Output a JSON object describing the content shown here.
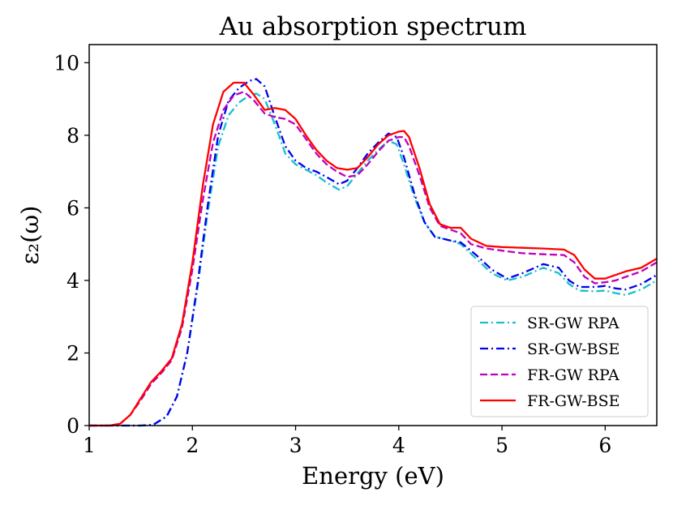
{
  "chart_data": {
    "type": "line",
    "title": "Au absorption spectrum",
    "xlabel": "Energy (eV)",
    "ylabel": "ε₂(ω)",
    "xlim": [
      1,
      6.5
    ],
    "ylim": [
      0,
      10.5
    ],
    "xticks": [
      1,
      2,
      3,
      4,
      5,
      6
    ],
    "yticks": [
      0,
      2,
      4,
      6,
      8,
      10
    ],
    "legend_position": "lower-right",
    "series": [
      {
        "name": "SR-GW RPA",
        "color": "#17becf",
        "dash": "dashdot",
        "x": [
          1.0,
          1.5,
          1.62,
          1.75,
          1.85,
          1.95,
          2.05,
          2.15,
          2.25,
          2.35,
          2.45,
          2.55,
          2.62,
          2.7,
          2.8,
          2.9,
          3.0,
          3.1,
          3.2,
          3.3,
          3.42,
          3.5,
          3.6,
          3.7,
          3.8,
          3.9,
          3.98,
          4.05,
          4.15,
          4.25,
          4.35,
          4.5,
          4.6,
          4.75,
          4.9,
          5.05,
          5.2,
          5.4,
          5.55,
          5.65,
          5.75,
          5.9,
          6.0,
          6.1,
          6.2,
          6.35,
          6.5
        ],
        "y": [
          0.0,
          0.0,
          0.02,
          0.25,
          0.8,
          2.0,
          3.8,
          5.9,
          7.7,
          8.55,
          8.9,
          9.1,
          9.15,
          9.0,
          8.3,
          7.5,
          7.2,
          7.05,
          6.9,
          6.7,
          6.5,
          6.6,
          6.95,
          7.3,
          7.6,
          7.85,
          7.75,
          7.2,
          6.3,
          5.6,
          5.2,
          5.1,
          5.0,
          4.6,
          4.2,
          4.0,
          4.1,
          4.35,
          4.2,
          3.9,
          3.72,
          3.7,
          3.72,
          3.65,
          3.6,
          3.75,
          4.0
        ]
      },
      {
        "name": "SR-GW-BSE",
        "color": "#0000ee",
        "dash": "dashdot",
        "x": [
          1.0,
          1.5,
          1.62,
          1.75,
          1.85,
          1.95,
          2.05,
          2.15,
          2.25,
          2.35,
          2.45,
          2.55,
          2.62,
          2.7,
          2.8,
          2.9,
          3.0,
          3.1,
          3.2,
          3.3,
          3.42,
          3.5,
          3.6,
          3.7,
          3.8,
          3.9,
          3.98,
          4.05,
          4.15,
          4.25,
          4.35,
          4.5,
          4.6,
          4.75,
          4.9,
          5.05,
          5.2,
          5.4,
          5.55,
          5.65,
          5.75,
          5.9,
          6.0,
          6.1,
          6.2,
          6.35,
          6.5
        ],
        "y": [
          0.0,
          0.0,
          0.02,
          0.25,
          0.8,
          2.0,
          3.9,
          6.1,
          8.0,
          8.95,
          9.3,
          9.5,
          9.55,
          9.35,
          8.5,
          7.7,
          7.3,
          7.1,
          7.0,
          6.85,
          6.65,
          6.75,
          7.1,
          7.5,
          7.8,
          8.05,
          7.95,
          7.4,
          6.4,
          5.6,
          5.2,
          5.1,
          5.05,
          4.7,
          4.3,
          4.05,
          4.2,
          4.45,
          4.35,
          4.0,
          3.82,
          3.82,
          3.85,
          3.78,
          3.75,
          3.9,
          4.15
        ]
      },
      {
        "name": "FR-GW RPA",
        "color": "#bf00bf",
        "dash": "dashed",
        "x": [
          1.0,
          1.2,
          1.3,
          1.4,
          1.5,
          1.6,
          1.7,
          1.8,
          1.9,
          2.0,
          2.1,
          2.2,
          2.3,
          2.4,
          2.5,
          2.6,
          2.7,
          2.8,
          2.9,
          3.0,
          3.1,
          3.2,
          3.3,
          3.4,
          3.5,
          3.6,
          3.7,
          3.8,
          3.9,
          4.0,
          4.05,
          4.1,
          4.2,
          4.3,
          4.4,
          4.5,
          4.6,
          4.7,
          4.85,
          5.0,
          5.2,
          5.4,
          5.6,
          5.7,
          5.8,
          5.9,
          6.0,
          6.1,
          6.2,
          6.35,
          6.5
        ],
        "y": [
          0.0,
          0.0,
          0.05,
          0.3,
          0.7,
          1.15,
          1.45,
          1.8,
          2.7,
          4.3,
          6.2,
          7.8,
          8.7,
          9.1,
          9.2,
          8.95,
          8.6,
          8.5,
          8.45,
          8.3,
          7.9,
          7.5,
          7.2,
          7.0,
          6.85,
          6.9,
          7.2,
          7.55,
          7.85,
          7.95,
          7.95,
          7.7,
          6.9,
          6.0,
          5.5,
          5.4,
          5.3,
          5.0,
          4.88,
          4.82,
          4.75,
          4.72,
          4.7,
          4.5,
          4.1,
          3.92,
          3.95,
          4.0,
          4.1,
          4.25,
          4.5
        ]
      },
      {
        "name": "FR-GW-BSE",
        "color": "#ff0000",
        "dash": "solid",
        "x": [
          1.0,
          1.2,
          1.3,
          1.4,
          1.5,
          1.6,
          1.7,
          1.8,
          1.9,
          2.0,
          2.1,
          2.2,
          2.3,
          2.4,
          2.5,
          2.6,
          2.7,
          2.8,
          2.9,
          3.0,
          3.1,
          3.2,
          3.3,
          3.4,
          3.5,
          3.6,
          3.7,
          3.8,
          3.9,
          4.0,
          4.05,
          4.1,
          4.2,
          4.3,
          4.4,
          4.5,
          4.6,
          4.7,
          4.85,
          5.0,
          5.2,
          5.4,
          5.6,
          5.7,
          5.8,
          5.9,
          6.0,
          6.1,
          6.2,
          6.35,
          6.5
        ],
        "y": [
          0.0,
          0.0,
          0.05,
          0.3,
          0.75,
          1.2,
          1.5,
          1.85,
          2.8,
          4.5,
          6.6,
          8.3,
          9.2,
          9.45,
          9.45,
          9.1,
          8.7,
          8.75,
          8.7,
          8.45,
          8.0,
          7.6,
          7.3,
          7.1,
          7.05,
          7.1,
          7.4,
          7.75,
          8.0,
          8.1,
          8.12,
          7.95,
          7.1,
          6.1,
          5.55,
          5.45,
          5.45,
          5.15,
          4.95,
          4.92,
          4.9,
          4.88,
          4.85,
          4.7,
          4.3,
          4.05,
          4.05,
          4.15,
          4.25,
          4.35,
          4.6
        ]
      }
    ]
  }
}
